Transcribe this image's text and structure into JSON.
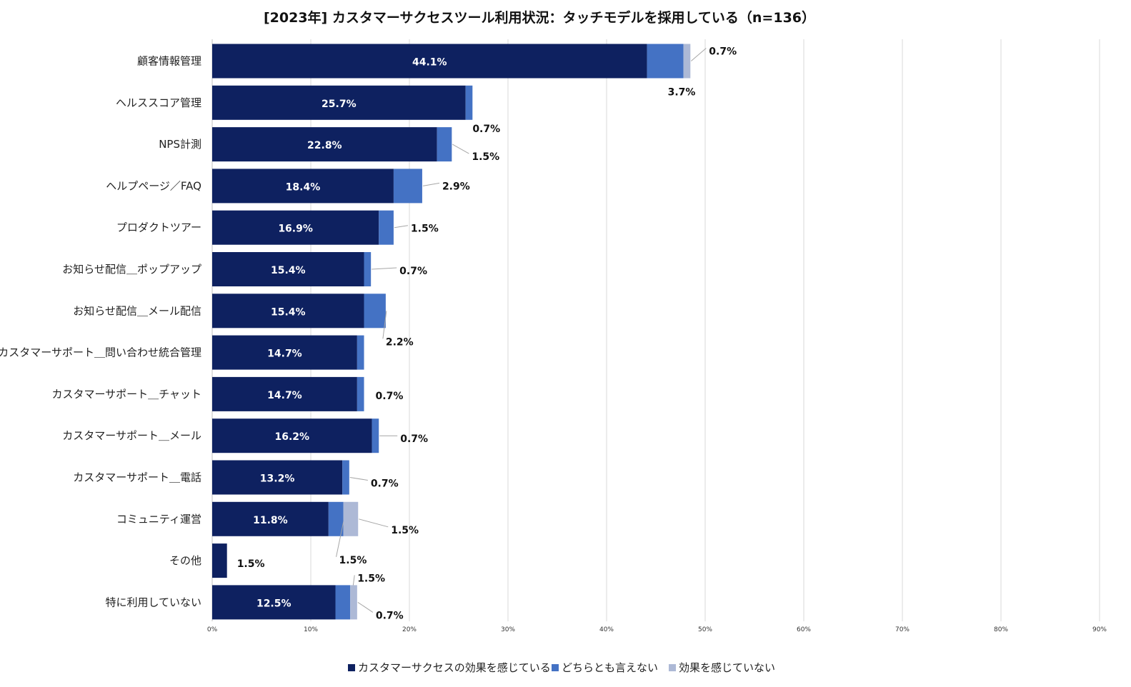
{
  "chart_data": {
    "type": "bar",
    "orientation": "horizontal",
    "stacked": true,
    "title": "[2023年] カスタマーサクセスツール利用状況：タッチモデルを採用している（n=136）",
    "xlabel": "",
    "ylabel": "",
    "xlim": [
      0,
      90
    ],
    "xticks": [
      "0%",
      "10%",
      "20%",
      "30%",
      "40%",
      "50%",
      "60%",
      "70%",
      "80%",
      "90%"
    ],
    "grid": true,
    "legend_position": "bottom",
    "categories": [
      "顧客情報管理",
      "ヘルススコア管理",
      "NPS計測",
      "ヘルプページ／FAQ",
      "プロダクトツアー",
      "お知らせ配信＿ポップアップ",
      "お知らせ配信＿メール配信",
      "カスタマーサポート＿問い合わせ統合管理",
      "カスタマーサポート＿チャット",
      "カスタマーサポート＿メール",
      "カスタマーサポート＿電話",
      "コミュニティ運営",
      "その他",
      "特に利用していない"
    ],
    "series": [
      {
        "name": "カスタマーサクセスの効果を感じている",
        "color": "#0e2160",
        "values": [
          44.1,
          25.7,
          22.8,
          18.4,
          16.9,
          15.4,
          15.4,
          14.7,
          14.7,
          16.2,
          13.2,
          11.8,
          1.5,
          12.5
        ],
        "labels": [
          "44.1%",
          "25.7%",
          "22.8%",
          "18.4%",
          "16.9%",
          "15.4%",
          "15.4%",
          "14.7%",
          "14.7%",
          "16.2%",
          "13.2%",
          "11.8%",
          "1.5%",
          "12.5%"
        ]
      },
      {
        "name": "どちらとも言えない",
        "color": "#4472c4",
        "values": [
          3.7,
          0.7,
          1.5,
          2.9,
          1.5,
          0.7,
          2.2,
          0.7,
          0.7,
          0.7,
          0.7,
          1.5,
          0,
          1.5
        ],
        "labels": [
          "3.7%",
          "0.7%",
          "1.5%",
          "2.9%",
          "1.5%",
          "0.7%",
          "2.2%",
          "",
          "0.7%",
          "0.7%",
          "0.7%",
          "1.5%",
          "",
          "1.5%"
        ]
      },
      {
        "name": "効果を感じていない",
        "color": "#adb9d6",
        "values": [
          0.7,
          0,
          0,
          0,
          0,
          0,
          0,
          0,
          0,
          0,
          0,
          1.5,
          0,
          0.7
        ],
        "labels": [
          "0.7%",
          "",
          "",
          "",
          "",
          "",
          "",
          "",
          "",
          "",
          "",
          "1.5%",
          "",
          "0.7%"
        ]
      }
    ]
  }
}
